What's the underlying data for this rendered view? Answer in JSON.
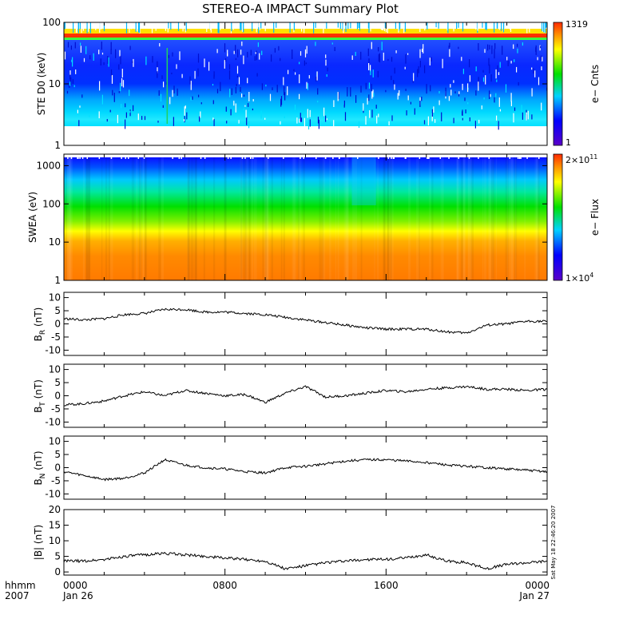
{
  "title": "STEREO-A IMPACT Summary Plot",
  "timestamp": "Sat May 18 22:46:20 2007",
  "colors": {
    "line": "#000000",
    "background": "#ffffff"
  },
  "chart_data": [
    {
      "type": "heatmap",
      "ylabel": "STE D0 (keV)",
      "yscale": "log",
      "ylim": [
        1,
        100
      ],
      "yticks": [
        "1",
        "10",
        "100"
      ],
      "colorbar": {
        "label": "e− Cnts",
        "max": "1319",
        "min": "1"
      }
    },
    {
      "type": "heatmap",
      "ylabel": "SWEA (eV)",
      "yscale": "log",
      "ylim": [
        1,
        2000
      ],
      "yticks": [
        "1",
        "10",
        "100",
        "1000"
      ],
      "colorbar": {
        "label": "e− Flux",
        "max_base": "2×10",
        "max_exp": "11",
        "min_base": "1×10",
        "min_exp": "4"
      }
    },
    {
      "type": "line",
      "ylabel_base": "B",
      "ylabel_sub": "R",
      "ylabel_unit": " (nT)",
      "ylim": [
        -12,
        12
      ],
      "yticks": [
        "10",
        "5",
        "0",
        "-5",
        "-10"
      ],
      "x": [
        0,
        1,
        2,
        3,
        4,
        5,
        6,
        7,
        8,
        9,
        10,
        11,
        12,
        13,
        14,
        15,
        16,
        17,
        18,
        19,
        20,
        21,
        22,
        23,
        24
      ],
      "y": [
        2,
        1.5,
        2,
        3.5,
        4,
        5.5,
        5.5,
        4.5,
        4.5,
        4,
        3.5,
        2.5,
        1.5,
        0.5,
        -0.5,
        -1.5,
        -2,
        -2,
        -2,
        -3,
        -3.5,
        -0.5,
        0,
        1,
        1
      ]
    },
    {
      "type": "line",
      "ylabel_base": "B",
      "ylabel_sub": "T",
      "ylabel_unit": " (nT)",
      "ylim": [
        -12,
        12
      ],
      "yticks": [
        "10",
        "5",
        "0",
        "-5",
        "-10"
      ],
      "x": [
        0,
        1,
        2,
        3,
        4,
        5,
        6,
        7,
        8,
        9,
        10,
        11,
        12,
        13,
        14,
        15,
        16,
        17,
        18,
        19,
        20,
        21,
        22,
        23,
        24
      ],
      "y": [
        -3.5,
        -3,
        -2,
        0,
        1.5,
        0,
        2,
        1,
        0,
        0.5,
        -2.5,
        1,
        3.5,
        -0.5,
        0,
        1,
        2,
        1.5,
        2.5,
        3,
        3.5,
        2.5,
        2.5,
        2,
        2.5
      ]
    },
    {
      "type": "line",
      "ylabel_base": "B",
      "ylabel_sub": "N",
      "ylabel_unit": " (nT)",
      "ylim": [
        -12,
        12
      ],
      "yticks": [
        "10",
        "5",
        "0",
        "-5",
        "-10"
      ],
      "x": [
        0,
        1,
        2,
        3,
        4,
        5,
        6,
        7,
        8,
        9,
        10,
        11,
        12,
        13,
        14,
        15,
        16,
        17,
        18,
        19,
        20,
        21,
        22,
        23,
        24
      ],
      "y": [
        -1.5,
        -3,
        -4.5,
        -4,
        -2,
        3,
        1,
        0,
        -0.5,
        -1.5,
        -2,
        0,
        0.5,
        1.5,
        2.5,
        3,
        3,
        2.5,
        2,
        1,
        0.5,
        0,
        -0.5,
        -1,
        -1.5
      ]
    },
    {
      "type": "line",
      "ylabel": "|B| (nT)",
      "ylim": [
        -1,
        20
      ],
      "yticks": [
        "20",
        "15",
        "10",
        "5",
        "0"
      ],
      "x": [
        0,
        1,
        2,
        3,
        4,
        5,
        6,
        7,
        8,
        9,
        10,
        11,
        12,
        13,
        14,
        15,
        16,
        17,
        18,
        19,
        20,
        21,
        22,
        23,
        24
      ],
      "y": [
        3.5,
        3.5,
        4,
        5,
        5.5,
        6,
        5.5,
        5,
        4.5,
        4,
        3.5,
        1,
        2,
        3,
        3.5,
        4,
        4,
        4.5,
        5.5,
        3.5,
        3,
        1,
        2.5,
        3,
        3.5
      ]
    }
  ],
  "x_axis": {
    "label_line1": "hhmm",
    "label_line2": "2007",
    "ticks": [
      {
        "hour": 0,
        "time": "0000",
        "date": "Jan 26"
      },
      {
        "hour": 8,
        "time": "0800",
        "date": ""
      },
      {
        "hour": 16,
        "time": "1600",
        "date": ""
      },
      {
        "hour": 24,
        "time": "0000",
        "date": "Jan 27"
      }
    ]
  }
}
